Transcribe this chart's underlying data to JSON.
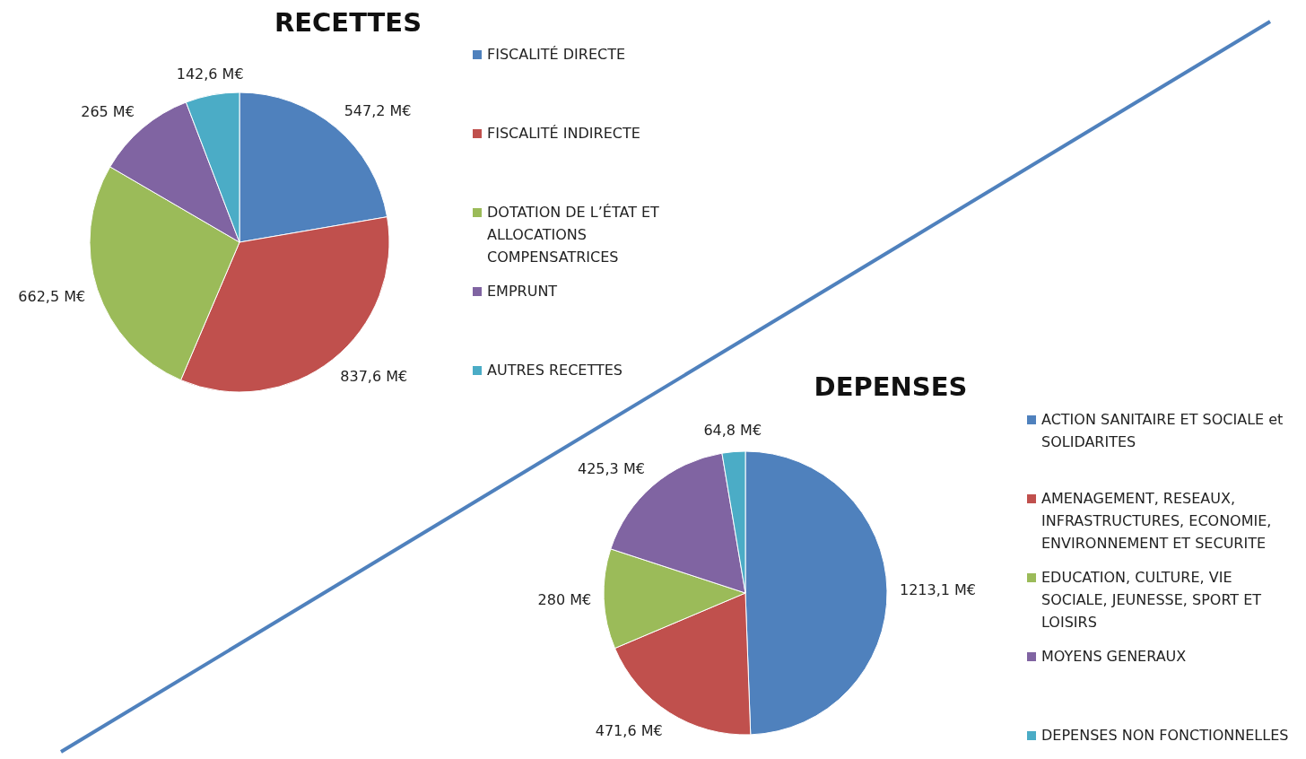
{
  "chart_data": [
    {
      "type": "pie",
      "title": "RECETTES",
      "categories": [
        "FISCALITÉ DIRECTE",
        "FISCALITÉ INDIRECTE",
        "DOTATION DE L’ÉTAT ET ALLOCATIONS COMPENSATRICES",
        "EMPRUNT",
        "AUTRES RECETTES"
      ],
      "values": [
        547.2,
        837.6,
        662.5,
        265,
        142.6
      ],
      "value_labels": [
        "547,2 M€",
        "837,6 M€",
        "662,5 M€",
        "265 M€",
        "142,6 M€"
      ],
      "colors": [
        "#4f81bd",
        "#c0504d",
        "#9bbb59",
        "#8064a2",
        "#4bacc6"
      ],
      "legend": "right"
    },
    {
      "type": "pie",
      "title": "DEPENSES",
      "categories": [
        "ACTION SANITAIRE ET SOCIALE et SOLIDARITES",
        "AMENAGEMENT, RESEAUX, INFRASTRUCTURES, ECONOMIE, ENVIRONNEMENT ET SECURITE",
        "EDUCATION, CULTURE, VIE SOCIALE, JEUNESSE, SPORT ET LOISIRS",
        "MOYENS GENERAUX",
        "DEPENSES NON FONCTIONNELLES"
      ],
      "values": [
        1213.1,
        471.6,
        280,
        425.3,
        64.8
      ],
      "value_labels": [
        "1213,1 M€",
        "471,6 M€",
        "280 M€",
        "425,3 M€",
        "64,8 M€"
      ],
      "colors": [
        "#4f81bd",
        "#c0504d",
        "#9bbb59",
        "#8064a2",
        "#4bacc6"
      ],
      "legend": "right"
    }
  ]
}
